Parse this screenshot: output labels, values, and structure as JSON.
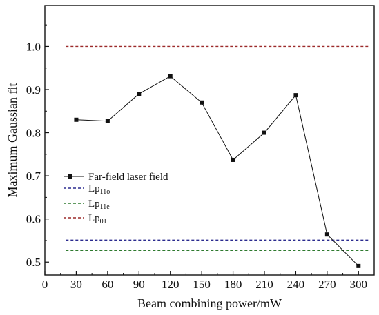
{
  "chart_data": {
    "type": "line",
    "xlabel": "Beam combining power/mW",
    "ylabel": "Maximum Gaussian fit",
    "xlim": [
      0,
      315
    ],
    "ylim": [
      0.47,
      1.095
    ],
    "xticks": [
      0,
      30,
      60,
      90,
      120,
      150,
      180,
      210,
      240,
      270,
      300
    ],
    "xtick_labels": [
      "0",
      "30",
      "60",
      "90",
      "120",
      "150",
      "180",
      "210",
      "240",
      "270",
      "300"
    ],
    "yticks": [
      0.5,
      0.6,
      0.7,
      0.8,
      0.9,
      1.0
    ],
    "ytick_labels": [
      "0.5",
      "0.6",
      "0.7",
      "0.8",
      "0.9",
      "1.0"
    ],
    "grid": false,
    "legend_position": "middle-left",
    "series": [
      {
        "name": "Far-field laser field",
        "style": "solid line with square markers",
        "color": "#111111",
        "x": [
          30,
          60,
          90,
          120,
          150,
          180,
          210,
          240,
          270,
          300
        ],
        "y": [
          0.83,
          0.827,
          0.89,
          0.931,
          0.87,
          0.737,
          0.8,
          0.887,
          0.564,
          0.491
        ]
      },
      {
        "name": "Lp",
        "name_sub": "11o",
        "style": "dashed",
        "color": "#2b2b8f",
        "x": [
          20,
          310
        ],
        "y": [
          0.551,
          0.551
        ]
      },
      {
        "name": "Lp",
        "name_sub": "11e",
        "style": "dashed",
        "color": "#2e7a2e",
        "x": [
          20,
          310
        ],
        "y": [
          0.527,
          0.527
        ]
      },
      {
        "name": "Lp",
        "name_sub": "01",
        "style": "dashed",
        "color": "#9c2a2a",
        "x": [
          20,
          310
        ],
        "y": [
          1.0,
          1.0
        ]
      }
    ]
  }
}
